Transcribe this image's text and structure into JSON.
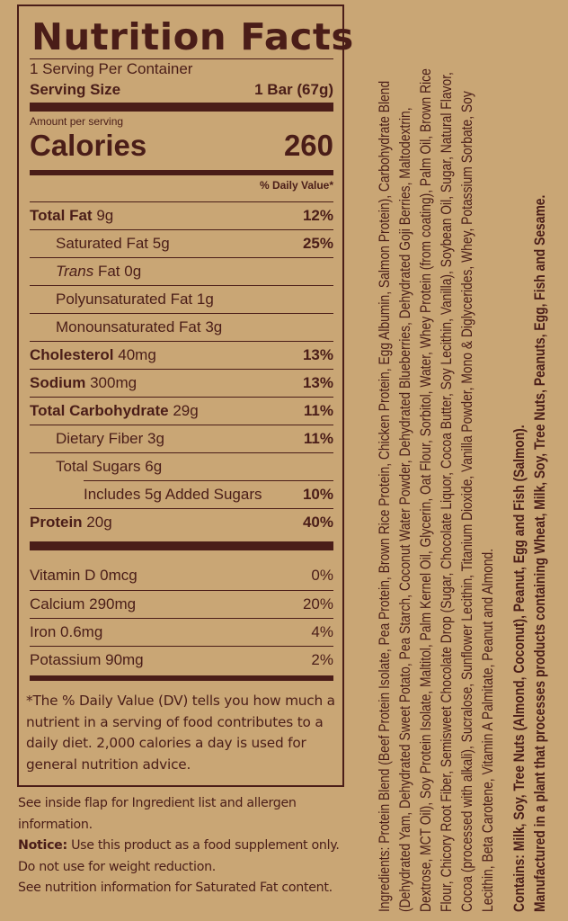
{
  "label": {
    "title": "Nutrition Facts",
    "servings_per_container": "1 Serving Per Container",
    "serving_size_label": "Serving Size",
    "serving_size_value": "1 Bar (67g)",
    "amount_per_serving": "Amount per serving",
    "calories_label": "Calories",
    "calories_value": "260",
    "daily_value_header": "% Daily Value*",
    "nutrients": [
      {
        "name": "Total Fat",
        "amount": "9g",
        "dv": "12%"
      },
      {
        "name": "Saturated Fat",
        "amount": "5g",
        "dv": "25%"
      },
      {
        "prefix": "Trans",
        "name": "Fat",
        "amount": "0g",
        "dv": ""
      },
      {
        "name": "Polyunsaturated Fat",
        "amount": "1g",
        "dv": ""
      },
      {
        "name": "Monounsaturated Fat",
        "amount": "3g",
        "dv": ""
      },
      {
        "name": "Cholesterol",
        "amount": "40mg",
        "dv": "13%"
      },
      {
        "name": "Sodium",
        "amount": "300mg",
        "dv": "13%"
      },
      {
        "name": "Total Carbohydrate",
        "amount": "29g",
        "dv": "11%"
      },
      {
        "name": "Dietary Fiber",
        "amount": "3g",
        "dv": "11%"
      },
      {
        "name": "Total Sugars",
        "amount": "6g",
        "dv": ""
      },
      {
        "name": "Includes 5g Added Sugars",
        "amount": "",
        "dv": "10%"
      },
      {
        "name": "Protein",
        "amount": "20g",
        "dv": "40%"
      }
    ],
    "vitamins": [
      {
        "name": "Vitamin D",
        "amount": "0mcg",
        "dv": "0%"
      },
      {
        "name": "Calcium",
        "amount": "290mg",
        "dv": "20%"
      },
      {
        "name": "Iron",
        "amount": "0.6mg",
        "dv": "4%"
      },
      {
        "name": "Potassium",
        "amount": "90mg",
        "dv": "2%"
      }
    ],
    "footnote": "*The % Daily Value (DV) tells you how much a nutrient in a serving of food contributes to a daily diet. 2,000 calories a day is used for general nutrition advice."
  },
  "notes": {
    "flap": "See inside flap for Ingredient list and allergen information.",
    "notice_label": "Notice:",
    "notice_text": "Use this product as a food supplement only. Do not use for weight reduction.",
    "saturated": "See nutrition information for Saturated Fat content."
  },
  "ingredients": {
    "lines": [
      "Ingredients: Protein Blend (Beef Protein Isolate, Pea Protein, Brown Rice Protein, Chicken Protein, Egg Albumin, Salmon Protein), Carbohydrate Blend",
      "(Dehydrated Yam, Dehydrated Sweet Potato, Pea Starch, Coconut Water Powder, Dehydrated Blueberries, Dehydrated Goji Berries, Maltodextrin,",
      "Dextrose, MCT Oil), Soy Protein Isolate, Maltitol, Palm Kernel Oil, Glycerin, Oat Flour, Sorbitol, Water, Whey Protein (from coating), Palm Oil, Brown Rice",
      "Flour, Chicory Root Fiber, Semisweet Chocolate Drop (Sugar, Chocolate Liquor, Cocoa Butter, Soy Lecithin, Vanilla), Soybean Oil, Sugar, Natural Flavor,",
      "Cocoa (processed with alkali), Sucralose, Sunflower Lecithin, Titanium Dioxide, Vanilla Powder, Mono & Diglycerides, Whey, Potassium Sorbate, Soy",
      "Lecithin, Beta Carotene, Vitamin A Palmitate, Peanut and Almond."
    ],
    "contains": "Contains: Milk, Soy, Tree Nuts (Almond, Coconut), Peanut, Egg and Fish (Salmon).",
    "manufactured": "Manufactured in a plant that processes products containing Wheat, Milk, Soy, Tree Nuts, Peanuts, Egg, Fish and Sesame."
  },
  "colors": {
    "background": "#c9a675",
    "ink": "#4a1d18"
  }
}
